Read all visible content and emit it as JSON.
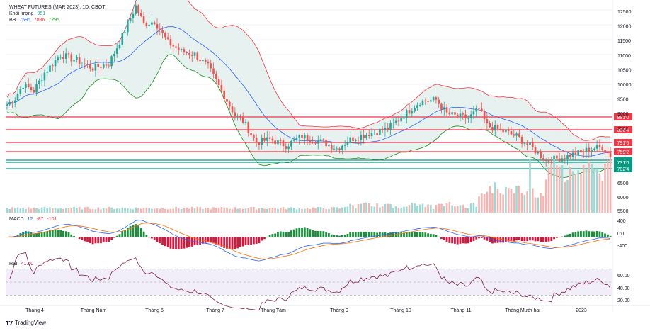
{
  "legend": {
    "title": "WHEAT FUTURES (MAR 2023), 1D, CBOT",
    "volume_label": "Khối lượng",
    "volume_value": "951",
    "bb_label": "BB",
    "bb_values": [
      "7595",
      "7896",
      "7295"
    ],
    "macd_label": "MACD",
    "macd_values": [
      "12",
      "-87",
      "-101"
    ],
    "rsi_label": "RSI",
    "rsi_value": "41.60"
  },
  "footer": {
    "brand": "TradingView"
  },
  "colors": {
    "up": "#26a69a",
    "down": "#ef5350",
    "level": "#f23645",
    "support": "#089981",
    "bb_basis": "#2962ff",
    "bb_upper": "#f23645",
    "bb_lower": "#1b8a1b",
    "bb_fill": "#e6f1f0",
    "rsi_line": "#7e1f47",
    "macd_line": "#2962ff",
    "signal_line": "#ff6d00"
  },
  "chart_data": {
    "type": "candlestick",
    "x_ticks": [
      "Tháng 4",
      "Tháng Năm",
      "Tháng 6",
      "Tháng 7",
      "Tháng Tám",
      "Tháng 9",
      "Tháng 10",
      "Tháng 11",
      "Tháng Mười hai",
      "2023"
    ],
    "price_axis": {
      "ticks": [
        "12500",
        "12000",
        "11500",
        "11000",
        "10500",
        "10000",
        "9500",
        "9000",
        "8500"
      ],
      "range": [
        6850,
        12700
      ]
    },
    "price_levels": [
      {
        "label": "881'0",
        "value": 881.0,
        "color": "#f23645"
      },
      {
        "label": "836'4",
        "value": 836.4,
        "color": "#f23645"
      },
      {
        "label": "791'6",
        "value": 791.6,
        "color": "#f23645"
      },
      {
        "label": "759'2",
        "value": 759.2,
        "color": "#f23645"
      },
      {
        "label": "748'4",
        "value": 748.4,
        "color": "#089981"
      },
      {
        "label": "731'0",
        "value": 731.0,
        "color": "#089981"
      },
      {
        "label": "702'4",
        "value": 702.4,
        "color": "#089981"
      }
    ],
    "price_keypoints": [
      {
        "t": 0,
        "p": 9250
      },
      {
        "t": 3,
        "p": 9450
      },
      {
        "t": 6,
        "p": 9900
      },
      {
        "t": 10,
        "p": 9700
      },
      {
        "t": 14,
        "p": 10300
      },
      {
        "t": 20,
        "p": 10900
      },
      {
        "t": 26,
        "p": 10700
      },
      {
        "t": 32,
        "p": 10450
      },
      {
        "t": 38,
        "p": 10600
      },
      {
        "t": 43,
        "p": 11500
      },
      {
        "t": 48,
        "p": 12500
      },
      {
        "t": 51,
        "p": 11900
      },
      {
        "t": 55,
        "p": 12000
      },
      {
        "t": 60,
        "p": 11300
      },
      {
        "t": 65,
        "p": 11000
      },
      {
        "t": 70,
        "p": 10900
      },
      {
        "t": 75,
        "p": 10500
      },
      {
        "t": 80,
        "p": 9700
      },
      {
        "t": 85,
        "p": 8900
      },
      {
        "t": 88,
        "p": 8700
      },
      {
        "t": 93,
        "p": 8000
      },
      {
        "t": 98,
        "p": 8100
      },
      {
        "t": 104,
        "p": 7900
      },
      {
        "t": 110,
        "p": 8200
      },
      {
        "t": 118,
        "p": 8000
      },
      {
        "t": 123,
        "p": 7800
      },
      {
        "t": 128,
        "p": 8100
      },
      {
        "t": 135,
        "p": 8300
      },
      {
        "t": 142,
        "p": 8450
      },
      {
        "t": 148,
        "p": 8900
      },
      {
        "t": 154,
        "p": 9350
      },
      {
        "t": 160,
        "p": 9400
      },
      {
        "t": 164,
        "p": 8950
      },
      {
        "t": 168,
        "p": 8850
      },
      {
        "t": 172,
        "p": 8800
      },
      {
        "t": 176,
        "p": 9100
      },
      {
        "t": 179,
        "p": 8550
      },
      {
        "t": 184,
        "p": 8400
      },
      {
        "t": 190,
        "p": 8200
      },
      {
        "t": 196,
        "p": 7800
      },
      {
        "t": 201,
        "p": 7400
      },
      {
        "t": 207,
        "p": 7500
      },
      {
        "t": 213,
        "p": 7650
      },
      {
        "t": 218,
        "p": 7800
      },
      {
        "t": 222,
        "p": 7850
      },
      {
        "t": 225,
        "p": 7590
      }
    ],
    "volume_axis": {
      "ticks": [
        "6500",
        "6000",
        "5500"
      ]
    },
    "macd_axis": {
      "ticks": [
        "400",
        "0'0",
        "-400"
      ]
    },
    "rsi_axis": {
      "ticks": [
        "60.00",
        "40.00",
        "20.00"
      ],
      "bands": [
        70,
        30
      ],
      "mid": 50
    }
  }
}
